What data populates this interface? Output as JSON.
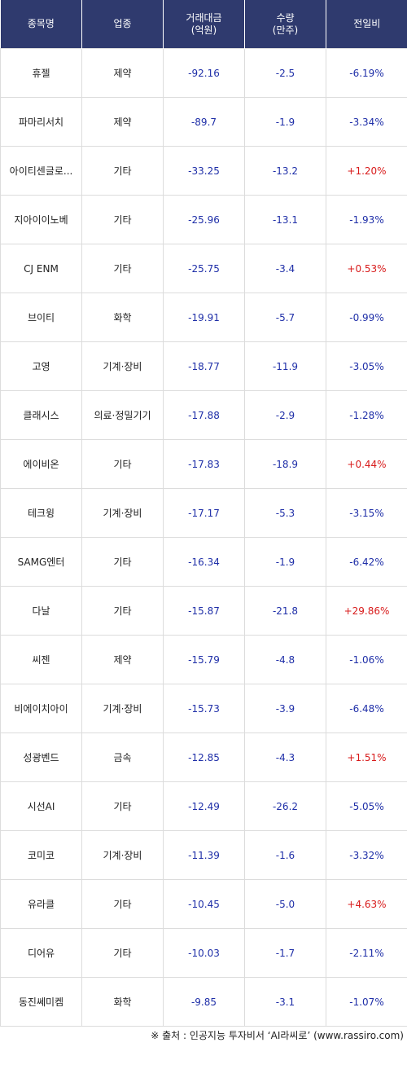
{
  "header": {
    "name": "종목명",
    "sector": "업종",
    "amount_line1": "거래대금",
    "amount_line2": "(억원)",
    "volume_line1": "수량",
    "volume_line2": "(만주)",
    "change": "전일비"
  },
  "rows": [
    {
      "name": "휴젤",
      "sector": "제약",
      "amount": "-92.16",
      "volume": "-2.5",
      "change": "-6.19%",
      "dir": "down"
    },
    {
      "name": "파마리서치",
      "sector": "제약",
      "amount": "-89.7",
      "volume": "-1.9",
      "change": "-3.34%",
      "dir": "down"
    },
    {
      "name": "아이티센글로...",
      "sector": "기타",
      "amount": "-33.25",
      "volume": "-13.2",
      "change": "+1.20%",
      "dir": "up"
    },
    {
      "name": "지아이이노베",
      "sector": "기타",
      "amount": "-25.96",
      "volume": "-13.1",
      "change": "-1.93%",
      "dir": "down"
    },
    {
      "name": "CJ ENM",
      "sector": "기타",
      "amount": "-25.75",
      "volume": "-3.4",
      "change": "+0.53%",
      "dir": "up"
    },
    {
      "name": "브이티",
      "sector": "화학",
      "amount": "-19.91",
      "volume": "-5.7",
      "change": "-0.99%",
      "dir": "down"
    },
    {
      "name": "고영",
      "sector": "기계·장비",
      "amount": "-18.77",
      "volume": "-11.9",
      "change": "-3.05%",
      "dir": "down"
    },
    {
      "name": "클래시스",
      "sector": "의료·정밀기기",
      "amount": "-17.88",
      "volume": "-2.9",
      "change": "-1.28%",
      "dir": "down"
    },
    {
      "name": "에이비온",
      "sector": "기타",
      "amount": "-17.83",
      "volume": "-18.9",
      "change": "+0.44%",
      "dir": "up"
    },
    {
      "name": "테크윙",
      "sector": "기계·장비",
      "amount": "-17.17",
      "volume": "-5.3",
      "change": "-3.15%",
      "dir": "down"
    },
    {
      "name": "SAMG엔터",
      "sector": "기타",
      "amount": "-16.34",
      "volume": "-1.9",
      "change": "-6.42%",
      "dir": "down"
    },
    {
      "name": "다날",
      "sector": "기타",
      "amount": "-15.87",
      "volume": "-21.8",
      "change": "+29.86%",
      "dir": "up"
    },
    {
      "name": "씨젠",
      "sector": "제약",
      "amount": "-15.79",
      "volume": "-4.8",
      "change": "-1.06%",
      "dir": "down"
    },
    {
      "name": "비에이치아이",
      "sector": "기계·장비",
      "amount": "-15.73",
      "volume": "-3.9",
      "change": "-6.48%",
      "dir": "down"
    },
    {
      "name": "성광벤드",
      "sector": "금속",
      "amount": "-12.85",
      "volume": "-4.3",
      "change": "+1.51%",
      "dir": "up"
    },
    {
      "name": "시선AI",
      "sector": "기타",
      "amount": "-12.49",
      "volume": "-26.2",
      "change": "-5.05%",
      "dir": "down"
    },
    {
      "name": "코미코",
      "sector": "기계·장비",
      "amount": "-11.39",
      "volume": "-1.6",
      "change": "-3.32%",
      "dir": "down"
    },
    {
      "name": "유라클",
      "sector": "기타",
      "amount": "-10.45",
      "volume": "-5.0",
      "change": "+4.63%",
      "dir": "up"
    },
    {
      "name": "디어유",
      "sector": "기타",
      "amount": "-10.03",
      "volume": "-1.7",
      "change": "-2.11%",
      "dir": "down"
    },
    {
      "name": "동진쎄미켐",
      "sector": "화학",
      "amount": "-9.85",
      "volume": "-3.1",
      "change": "-1.07%",
      "dir": "down"
    }
  ],
  "source": "※ 출처 : 인공지능 투자비서 ‘AI라씨로’ (www.rassiro.com)",
  "colors": {
    "header_bg": "#2f3a6e",
    "negative": "#1f2fa8",
    "positive": "#d81b1b",
    "border": "#dcdcdc"
  }
}
